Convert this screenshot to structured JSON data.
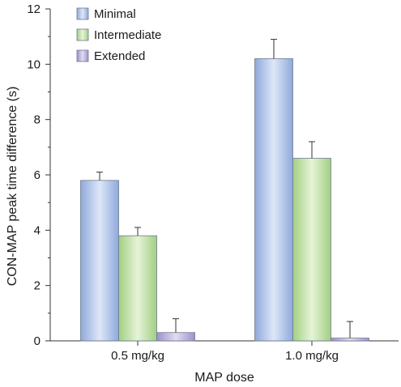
{
  "chart_data": {
    "type": "bar",
    "title": "",
    "xlabel": "MAP dose",
    "ylabel": "CON-MAP peak time difference (s)",
    "ylim": [
      0,
      12
    ],
    "yticks": [
      "0",
      "2",
      "4",
      "6",
      "8",
      "10",
      "12"
    ],
    "categories": [
      "0.5 mg/kg",
      "1.0 mg/kg"
    ],
    "legend_position": "top-left",
    "grid": false,
    "series": [
      {
        "name": "Minimal",
        "values": [
          5.8,
          10.2
        ],
        "errors": [
          0.3,
          0.7
        ],
        "color": "#a9c0e8"
      },
      {
        "name": "Intermediate",
        "values": [
          3.8,
          6.6
        ],
        "errors": [
          0.3,
          0.6
        ],
        "color": "#b8dc9c"
      },
      {
        "name": "Extended",
        "values": [
          0.3,
          0.1
        ],
        "errors": [
          0.5,
          0.6
        ],
        "color": "#b4a8d8"
      }
    ]
  }
}
